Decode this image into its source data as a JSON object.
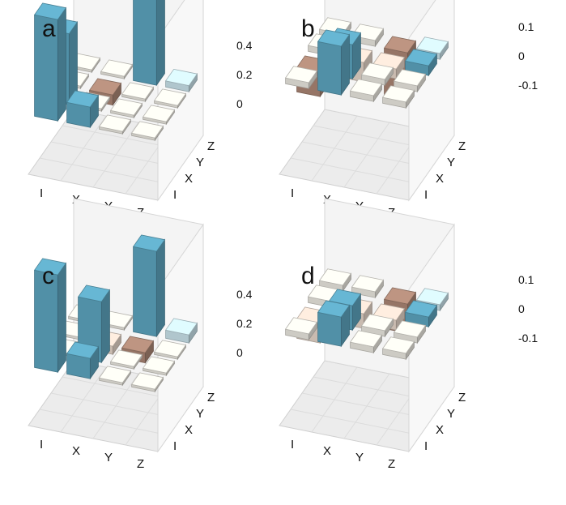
{
  "chart_data": [
    {
      "panel_label": "a",
      "type": "bar3d",
      "row_categories": [
        "I",
        "X",
        "Y",
        "Z"
      ],
      "col_categories": [
        "I",
        "X",
        "Y",
        "Z"
      ],
      "zlim": [
        -0.1,
        0.5
      ],
      "zticks": [
        "0.4",
        "0.2",
        "0"
      ],
      "values": [
        [
          0.5,
          0.1,
          0.0,
          0.0
        ],
        [
          0.35,
          0.0,
          0.0,
          0.0
        ],
        [
          0.0,
          -0.05,
          0.0,
          0.0
        ],
        [
          0.0,
          0.0,
          0.45,
          0.03
        ]
      ]
    },
    {
      "panel_label": "b",
      "type": "bar3d",
      "row_categories": [
        "I",
        "X",
        "Y",
        "Z"
      ],
      "col_categories": [
        "I",
        "X",
        "Y",
        "Z"
      ],
      "zlim": [
        -0.12,
        0.12
      ],
      "zticks": [
        "0.1",
        "0",
        "-0.1"
      ],
      "values": [
        [
          0.0,
          0.1,
          0.0,
          0.0
        ],
        [
          -0.05,
          0.07,
          0.0,
          0.0
        ],
        [
          0.0,
          -0.04,
          -0.02,
          0.02
        ],
        [
          0.0,
          0.0,
          -0.1,
          0.01
        ]
      ]
    },
    {
      "panel_label": "c",
      "type": "bar3d",
      "row_categories": [
        "I",
        "X",
        "Y",
        "Z"
      ],
      "col_categories": [
        "I",
        "X",
        "Y",
        "Z"
      ],
      "zlim": [
        -0.1,
        0.5
      ],
      "zticks": [
        "0.4",
        "0.2",
        "0"
      ],
      "values": [
        [
          0.48,
          0.1,
          0.0,
          0.0
        ],
        [
          0.0,
          0.3,
          0.0,
          0.0
        ],
        [
          0.0,
          -0.04,
          -0.05,
          0.0
        ],
        [
          0.0,
          0.0,
          0.42,
          0.04
        ]
      ]
    },
    {
      "panel_label": "d",
      "type": "bar3d",
      "row_categories": [
        "I",
        "X",
        "Y",
        "Z"
      ],
      "col_categories": [
        "I",
        "X",
        "Y",
        "Z"
      ],
      "zlim": [
        -0.12,
        0.12
      ],
      "zticks": [
        "0.1",
        "0",
        "-0.1"
      ],
      "values": [
        [
          0.0,
          0.06,
          0.0,
          0.0
        ],
        [
          -0.04,
          0.05,
          0.0,
          0.0
        ],
        [
          0.0,
          -0.03,
          -0.02,
          0.02
        ],
        [
          0.0,
          0.0,
          -0.06,
          0.01
        ]
      ]
    }
  ],
  "colors": {
    "positive": "#5fa9c4",
    "positive_light": "#cfe9f1",
    "negative": "#b08a78",
    "negative_light": "#ecdccf",
    "near_zero": "#f1efe6"
  }
}
